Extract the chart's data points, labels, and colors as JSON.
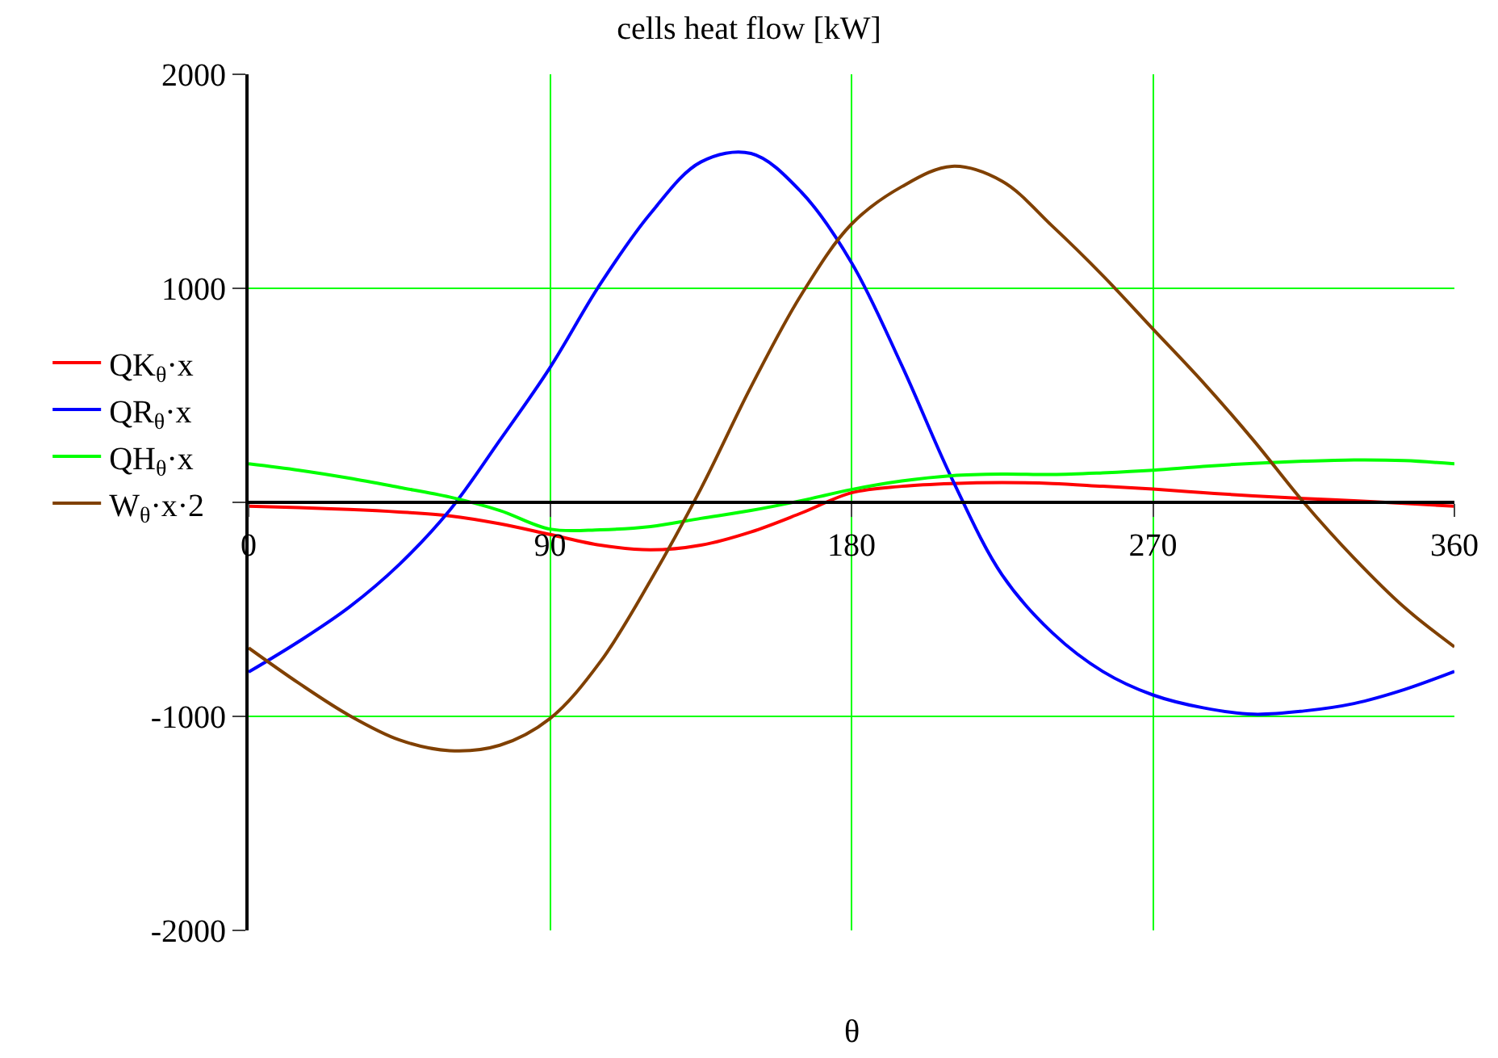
{
  "chart_data": {
    "type": "line",
    "title": "cells heat flow [kW]",
    "xlabel": "θ",
    "x": [
      0,
      15,
      30,
      45,
      60,
      75,
      90,
      105,
      120,
      135,
      150,
      165,
      180,
      195,
      210,
      225,
      240,
      255,
      270,
      285,
      300,
      315,
      330,
      345,
      360
    ],
    "series": [
      {
        "name": "QK$_{θ}$·x",
        "color": "#ff0000",
        "values": [
          -18,
          -25,
          -33,
          -45,
          -63,
          -100,
          -150,
          -200,
          -222,
          -200,
          -138,
          -50,
          45,
          75,
          88,
          92,
          88,
          75,
          62,
          45,
          30,
          18,
          8,
          -5,
          -18
        ]
      },
      {
        "name": "QR$_{θ}$·x",
        "color": "#0000ff",
        "values": [
          -793,
          -650,
          -490,
          -290,
          -38,
          290,
          630,
          1020,
          1350,
          1590,
          1630,
          1450,
          1120,
          640,
          110,
          -340,
          -610,
          -790,
          -900,
          -960,
          -990,
          -975,
          -940,
          -875,
          -790
        ]
      },
      {
        "name": "QH$_{θ}$·x",
        "color": "#00ff00",
        "values": [
          180,
          150,
          113,
          70,
          25,
          -38,
          -125,
          -128,
          -113,
          -75,
          -38,
          8,
          60,
          100,
          125,
          132,
          130,
          138,
          150,
          168,
          182,
          192,
          198,
          195,
          180
        ]
      },
      {
        "name": "W$_{θ}$·x·2",
        "color": "#804000",
        "values": [
          -680,
          -845,
          -995,
          -1110,
          -1160,
          -1135,
          -1010,
          -745,
          -365,
          63,
          540,
          970,
          1300,
          1475,
          1570,
          1500,
          1290,
          1060,
          810,
          560,
          290,
          0,
          -260,
          -490,
          -675
        ]
      }
    ],
    "xlim": [
      0,
      360
    ],
    "xticks": [
      0,
      90,
      180,
      270,
      360
    ],
    "ylim": [
      -2000,
      2000
    ],
    "yticks": [
      -2000,
      -1000,
      {
        "value": 0,
        "label": null
      },
      1000,
      2000
    ],
    "grid": true,
    "legend": "left",
    "marker": "none",
    "line_style": "solid"
  }
}
